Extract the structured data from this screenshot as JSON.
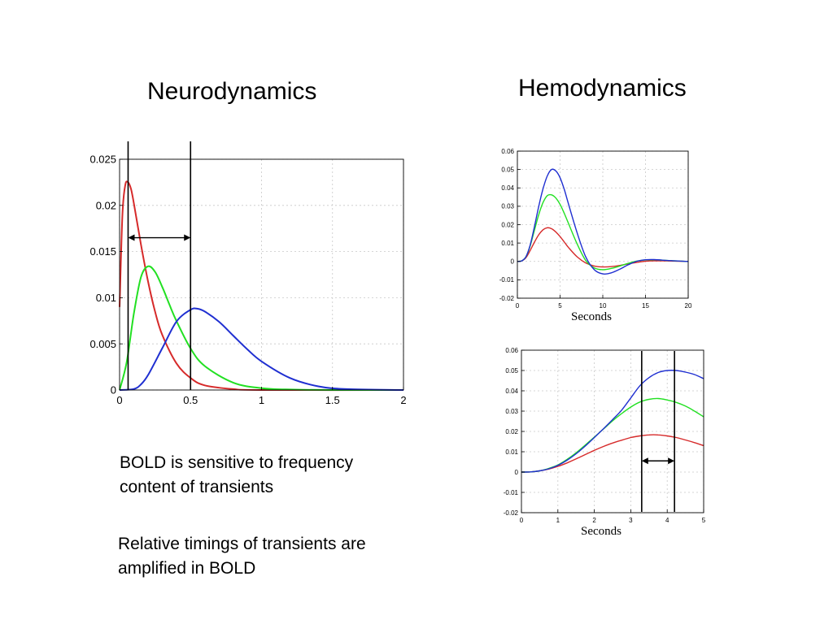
{
  "headings": {
    "neurodynamics": "Neurodynamics",
    "hemodynamics": "Hemodynamics"
  },
  "notes": {
    "frequency_line1": "BOLD is sensitive to frequency",
    "frequency_line2": "content of transients",
    "timing_line1": "Relative timings of transients are",
    "timing_line2": "amplified in BOLD"
  },
  "colors": {
    "red": "#d62a2a",
    "green": "#22e022",
    "blue": "#1f2fd1",
    "grid": "#c8c8c8",
    "marker": "#000000"
  },
  "chart_data": [
    {
      "type": "line",
      "panel": "neurodynamics",
      "title": "",
      "xlabel": "",
      "ylabel": "",
      "xlim": [
        0,
        2
      ],
      "ylim": [
        0,
        0.025
      ],
      "xticks": [
        0,
        0.5,
        1,
        1.5,
        2
      ],
      "yticks": [
        0,
        0.005,
        0.01,
        0.015,
        0.02,
        0.025
      ],
      "grid": true,
      "series": [
        {
          "color": "red",
          "x": [
            0,
            0.02,
            0.04,
            0.06,
            0.08,
            0.1,
            0.15,
            0.2,
            0.25,
            0.3,
            0.4,
            0.5,
            0.6,
            0.8,
            1.0,
            2.0
          ],
          "y": [
            0.009,
            0.019,
            0.0222,
            0.0225,
            0.0218,
            0.0203,
            0.0158,
            0.0118,
            0.0085,
            0.006,
            0.0029,
            0.0013,
            0.0005,
            0.0001,
            0.0,
            0.0
          ]
        },
        {
          "color": "green",
          "x": [
            0,
            0.05,
            0.1,
            0.15,
            0.2,
            0.25,
            0.3,
            0.35,
            0.4,
            0.5,
            0.6,
            0.8,
            1.0,
            1.2,
            1.5,
            2.0
          ],
          "y": [
            0.0,
            0.003,
            0.0082,
            0.0122,
            0.0134,
            0.0128,
            0.0112,
            0.0093,
            0.0075,
            0.0045,
            0.0026,
            0.0008,
            0.0002,
            5e-05,
            0.0,
            0.0
          ]
        },
        {
          "color": "blue",
          "x": [
            0,
            0.1,
            0.15,
            0.2,
            0.3,
            0.4,
            0.5,
            0.55,
            0.6,
            0.7,
            0.8,
            0.9,
            1.0,
            1.2,
            1.4,
            1.6,
            2.0
          ],
          "y": [
            0.0,
            0.0001,
            0.0006,
            0.0016,
            0.0045,
            0.0074,
            0.0087,
            0.0088,
            0.0085,
            0.0074,
            0.0059,
            0.0044,
            0.0031,
            0.0013,
            0.0004,
            0.0001,
            0.0
          ]
        }
      ],
      "markers": {
        "vlines_x": [
          0.06,
          0.5
        ],
        "arrow": {
          "x_from": 0.06,
          "x_to": 0.5,
          "y": 0.0165
        }
      }
    },
    {
      "type": "line",
      "panel": "hemodynamics-full",
      "title": "",
      "xlabel": "Seconds",
      "ylabel": "",
      "xlim": [
        0,
        20
      ],
      "ylim": [
        -0.02,
        0.06
      ],
      "xticks": [
        0,
        5,
        10,
        15,
        20
      ],
      "yticks": [
        -0.02,
        -0.01,
        0,
        0.01,
        0.02,
        0.03,
        0.04,
        0.05,
        0.06
      ],
      "grid": true,
      "series": [
        {
          "color": "red",
          "x": [
            0,
            0.5,
            1,
            1.5,
            2,
            2.5,
            3,
            3.5,
            4,
            4.5,
            5,
            5.5,
            6,
            7,
            8,
            9,
            10,
            11,
            12,
            13,
            14,
            15,
            16,
            17,
            18,
            19,
            20
          ],
          "y": [
            0,
            0.0003,
            0.002,
            0.006,
            0.0105,
            0.0145,
            0.0172,
            0.0183,
            0.0178,
            0.016,
            0.0135,
            0.0105,
            0.0075,
            0.0025,
            -0.0008,
            -0.0025,
            -0.003,
            -0.0028,
            -0.0022,
            -0.0013,
            -0.0005,
            0.0001,
            0.0003,
            0.0003,
            0.0002,
            0.0001,
            0
          ]
        },
        {
          "color": "green",
          "x": [
            0,
            0.5,
            1,
            1.5,
            2,
            2.5,
            3,
            3.5,
            4,
            4.5,
            5,
            5.5,
            6,
            7,
            8,
            9,
            10,
            11,
            12,
            13,
            14,
            15,
            16,
            17,
            18,
            19,
            20
          ],
          "y": [
            0,
            0.0003,
            0.0025,
            0.0085,
            0.017,
            0.0255,
            0.032,
            0.0358,
            0.0362,
            0.0345,
            0.031,
            0.026,
            0.0205,
            0.0095,
            0.0005,
            -0.0035,
            -0.0045,
            -0.0038,
            -0.0025,
            -0.001,
            0.0002,
            0.0008,
            0.0009,
            0.0007,
            0.0004,
            0.0002,
            0
          ]
        },
        {
          "color": "blue",
          "x": [
            0,
            0.5,
            1,
            1.5,
            2,
            2.5,
            3,
            3.5,
            4,
            4.5,
            5,
            5.5,
            6,
            7,
            8,
            9,
            10,
            11,
            12,
            13,
            14,
            15,
            16,
            17,
            18,
            19,
            20
          ],
          "y": [
            0,
            0.0003,
            0.0025,
            0.009,
            0.019,
            0.03,
            0.0395,
            0.0465,
            0.05,
            0.0492,
            0.0455,
            0.039,
            0.031,
            0.0155,
            0.0025,
            -0.0045,
            -0.0068,
            -0.0062,
            -0.0042,
            -0.0018,
            0.0001,
            0.0009,
            0.001,
            0.0007,
            0.0004,
            0.0002,
            0
          ]
        }
      ]
    },
    {
      "type": "line",
      "panel": "hemodynamics-zoom",
      "title": "",
      "xlabel": "Seconds",
      "ylabel": "",
      "xlim": [
        0,
        5
      ],
      "ylim": [
        -0.02,
        0.06
      ],
      "xticks": [
        0,
        1,
        2,
        3,
        4,
        5
      ],
      "yticks": [
        -0.02,
        -0.01,
        0,
        0.01,
        0.02,
        0.03,
        0.04,
        0.05,
        0.06
      ],
      "grid": true,
      "series": [
        {
          "color": "red",
          "x": [
            0,
            0.25,
            0.5,
            0.75,
            1,
            1.25,
            1.5,
            1.75,
            2,
            2.25,
            2.5,
            2.75,
            3,
            3.25,
            3.5,
            3.75,
            4,
            4.25,
            4.5,
            4.75,
            5
          ],
          "y": [
            0,
            0.0001,
            0.0006,
            0.0015,
            0.0028,
            0.0045,
            0.0065,
            0.0086,
            0.0107,
            0.0126,
            0.0143,
            0.0157,
            0.017,
            0.0178,
            0.0183,
            0.0183,
            0.0178,
            0.017,
            0.0158,
            0.0145,
            0.013
          ]
        },
        {
          "color": "green",
          "x": [
            0,
            0.25,
            0.5,
            0.75,
            1,
            1.25,
            1.5,
            1.75,
            2,
            2.25,
            2.5,
            2.75,
            3,
            3.25,
            3.5,
            3.75,
            4,
            4.25,
            4.5,
            4.75,
            5
          ],
          "y": [
            0,
            0.0001,
            0.0006,
            0.0018,
            0.0035,
            0.0062,
            0.0095,
            0.0133,
            0.0172,
            0.0212,
            0.0252,
            0.0288,
            0.032,
            0.0345,
            0.0358,
            0.0362,
            0.0355,
            0.0343,
            0.0325,
            0.03,
            0.0272
          ]
        },
        {
          "color": "blue",
          "x": [
            0,
            0.25,
            0.5,
            0.75,
            1,
            1.25,
            1.5,
            1.75,
            2,
            2.25,
            2.5,
            2.75,
            3,
            3.25,
            3.5,
            3.75,
            4,
            4.25,
            4.5,
            4.75,
            5
          ],
          "y": [
            0,
            0.0001,
            0.0006,
            0.0016,
            0.0033,
            0.0058,
            0.009,
            0.0128,
            0.017,
            0.0213,
            0.0258,
            0.0305,
            0.0365,
            0.0425,
            0.0465,
            0.049,
            0.05,
            0.05,
            0.0492,
            0.048,
            0.046
          ]
        }
      ],
      "markers": {
        "vlines_x": [
          3.3,
          4.2
        ],
        "arrow": {
          "x_from": 3.3,
          "x_to": 4.2,
          "y": 0.0055
        }
      }
    }
  ]
}
